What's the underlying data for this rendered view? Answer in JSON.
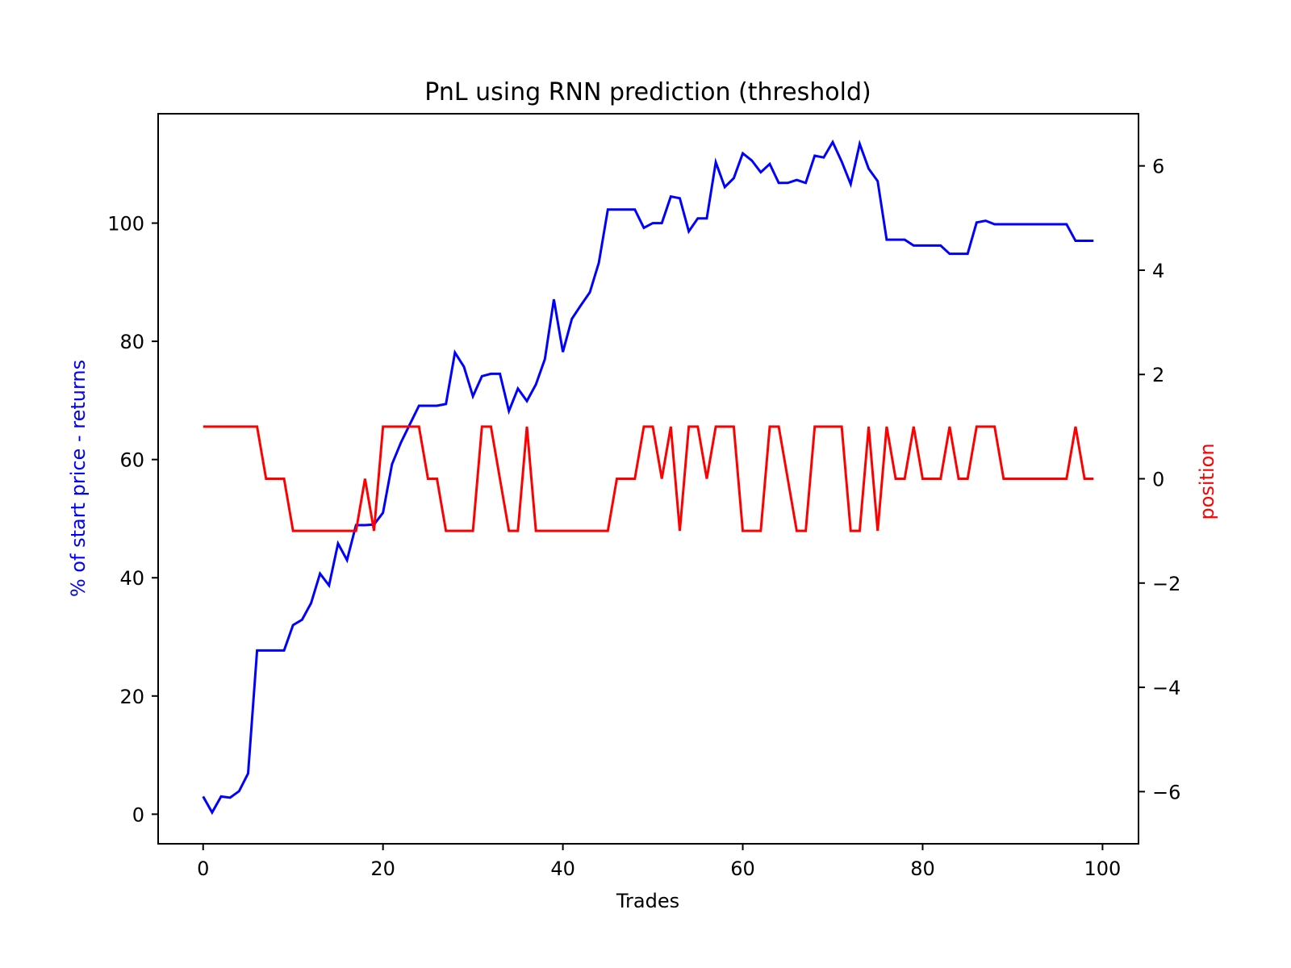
{
  "chart_data": {
    "type": "line",
    "title": "PnL using RNN prediction (threshold)",
    "xlabel": "Trades",
    "ylabel_left": "% of start price - returns",
    "ylabel_right": "position",
    "xlim": [
      -5,
      104
    ],
    "ylim_left": [
      -5,
      118.5
    ],
    "ylim_right": [
      -7,
      7
    ],
    "x_ticks": [
      0,
      20,
      40,
      60,
      80,
      100
    ],
    "x_tick_labels": [
      "0",
      "20",
      "40",
      "60",
      "80",
      "100"
    ],
    "left_ticks": [
      0,
      20,
      40,
      60,
      80,
      100
    ],
    "left_tick_labels": [
      "0",
      "20",
      "40",
      "60",
      "80",
      "100"
    ],
    "right_ticks": [
      -6,
      -4,
      -2,
      0,
      2,
      4,
      6
    ],
    "right_tick_labels": [
      "−6",
      "−4",
      "−2",
      "0",
      "2",
      "4",
      "6"
    ],
    "grid": false,
    "series": [
      {
        "axis": "left",
        "color": "#0000ff",
        "x_start": 0,
        "values": [
          3.0,
          0.3,
          3.0,
          2.8,
          3.9,
          6.9,
          27.7,
          27.7,
          27.7,
          27.7,
          32.0,
          32.9,
          35.7,
          40.7,
          38.7,
          45.8,
          43.0,
          48.9,
          48.9,
          49.0,
          51.0,
          59.2,
          62.9,
          66.0,
          69.1,
          69.1,
          69.1,
          69.4,
          78.1,
          75.7,
          70.7,
          74.1,
          74.5,
          74.5,
          68.2,
          72.0,
          69.9,
          72.7,
          77.0,
          87.1,
          78.2,
          83.8,
          86.1,
          88.3,
          93.3,
          102.3,
          102.3,
          102.3,
          102.3,
          99.2,
          100.0,
          100.0,
          104.5,
          104.2,
          98.6,
          100.8,
          100.8,
          110.3,
          106.1,
          107.6,
          111.8,
          110.6,
          108.6,
          110.0,
          106.8,
          106.8,
          107.3,
          106.8,
          111.4,
          111.1,
          113.7,
          110.4,
          106.6,
          113.4,
          109.2,
          107.1,
          97.2,
          97.2,
          97.2,
          96.2,
          96.2,
          96.2,
          96.2,
          94.8,
          94.8,
          94.8,
          100.1,
          100.4,
          99.8,
          99.8,
          99.8,
          99.8,
          99.8,
          99.8,
          99.8,
          99.8,
          99.8,
          97.0,
          97.0,
          97.0
        ]
      },
      {
        "axis": "right",
        "color": "#ff0000",
        "x_start": 0,
        "values": [
          1,
          1,
          1,
          1,
          1,
          1,
          1,
          0,
          0,
          0,
          -1,
          -1,
          -1,
          -1,
          -1,
          -1,
          -1,
          -1,
          0,
          -1,
          1,
          1,
          1,
          1,
          1,
          0,
          0,
          -1,
          -1,
          -1,
          -1,
          1,
          1,
          0,
          -1,
          -1,
          1,
          -1,
          -1,
          -1,
          -1,
          -1,
          -1,
          -1,
          -1,
          -1,
          0,
          0,
          0,
          1,
          1,
          0,
          1,
          -1,
          1,
          1,
          0,
          1,
          1,
          1,
          -1,
          -1,
          -1,
          1,
          1,
          0,
          -1,
          -1,
          1,
          1,
          1,
          1,
          -1,
          -1,
          1,
          -1,
          1,
          0,
          0,
          1,
          0,
          0,
          0,
          1,
          0,
          0,
          1,
          1,
          1,
          0,
          0,
          0,
          0,
          0,
          0,
          0,
          0,
          1,
          0,
          0
        ]
      }
    ]
  }
}
